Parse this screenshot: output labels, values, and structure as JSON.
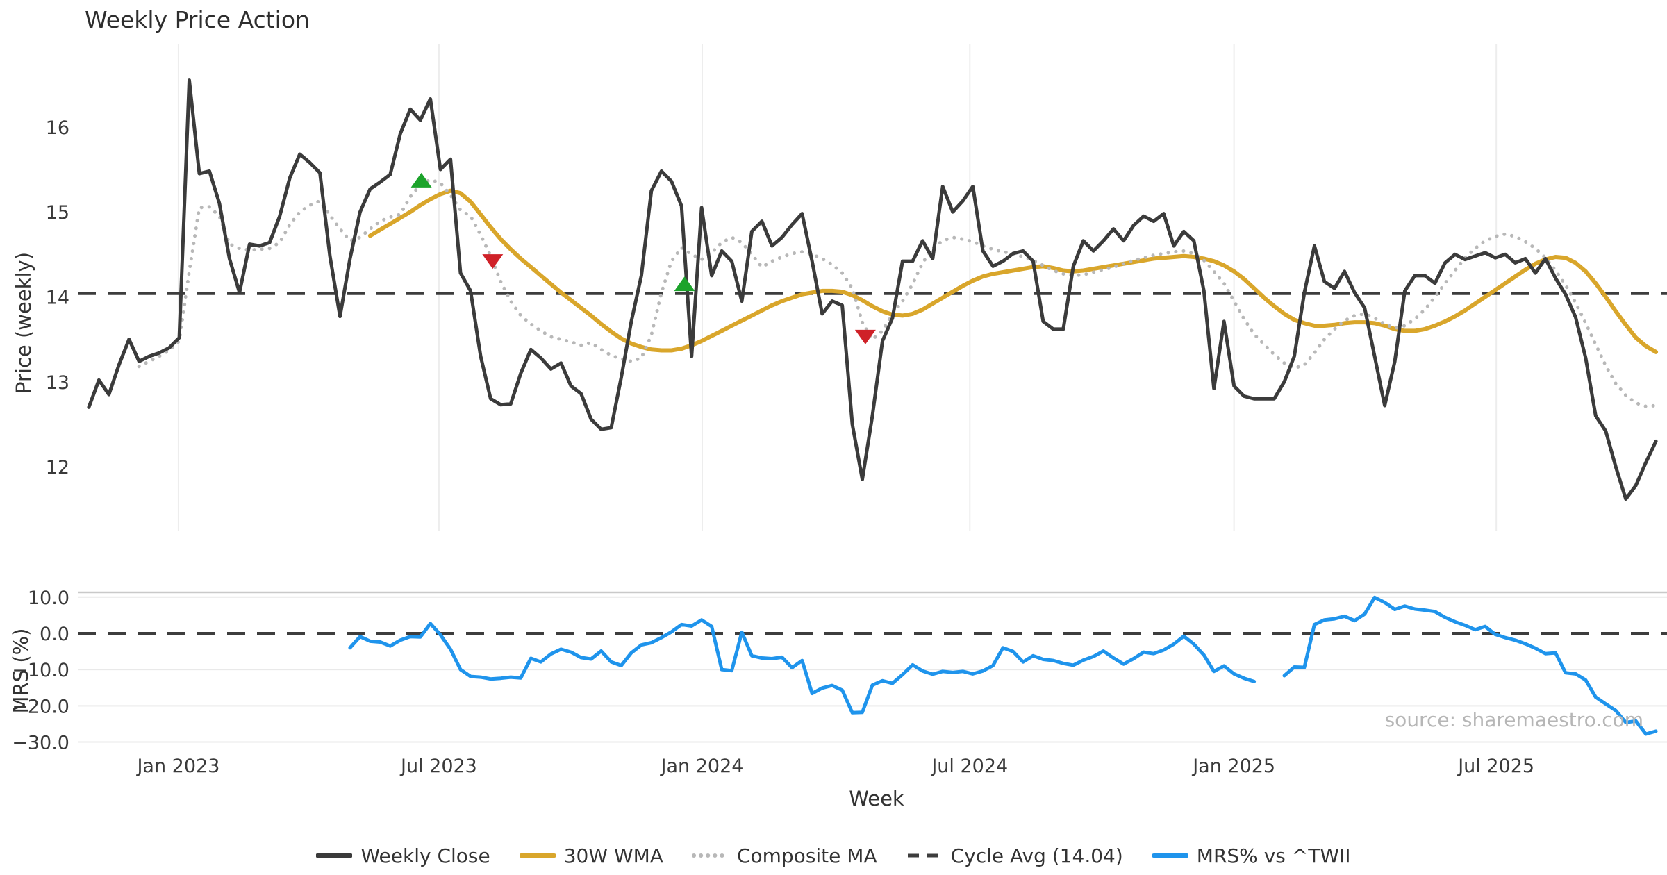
{
  "chart_data": {
    "type": "line",
    "title": "Weekly Price Action",
    "source_text": "source: sharemaestro.com",
    "x_axis": {
      "label": "Week",
      "xlim": [
        -1.1,
        157.1
      ],
      "ticks": [
        {
          "week": 8.92,
          "label": "Jan 2023"
        },
        {
          "week": 34.85,
          "label": "Jul 2023"
        },
        {
          "week": 61.06,
          "label": "Jan 2024"
        },
        {
          "week": 87.7,
          "label": "Jul 2024"
        },
        {
          "week": 114.0,
          "label": "Jan 2025"
        },
        {
          "week": 140.1,
          "label": "Jul 2025"
        }
      ]
    },
    "panels": [
      {
        "name": "price",
        "ylabel": "Price (weekly)",
        "ylim": [
          11.24,
          16.98
        ],
        "yticks": [
          {
            "v": 12,
            "label": "12"
          },
          {
            "v": 13,
            "label": "13"
          },
          {
            "v": 14,
            "label": "14"
          },
          {
            "v": 15,
            "label": "15"
          },
          {
            "v": 16,
            "label": "16"
          }
        ],
        "reference_line": {
          "label": "Cycle Avg (14.04)",
          "value": 14.04,
          "color": "#3d3d3d"
        },
        "series": [
          {
            "name": "Weekly Close",
            "color": "#3b3b3b",
            "style": "solid",
            "width": 5,
            "start_week": 0,
            "values": [
              12.7,
              13.02,
              12.85,
              13.2,
              13.5,
              13.24,
              13.3,
              13.34,
              13.4,
              13.52,
              16.55,
              15.45,
              15.48,
              15.1,
              14.45,
              14.05,
              14.62,
              14.6,
              14.64,
              14.95,
              15.4,
              15.68,
              15.58,
              15.46,
              14.48,
              13.77,
              14.45,
              15.0,
              15.27,
              15.35,
              15.44,
              15.92,
              16.21,
              16.08,
              16.33,
              15.5,
              15.62,
              14.28,
              14.07,
              13.3,
              12.8,
              12.73,
              12.74,
              13.1,
              13.38,
              13.28,
              13.15,
              13.22,
              12.95,
              12.86,
              12.56,
              12.44,
              12.46,
              13.05,
              13.71,
              14.25,
              15.25,
              15.48,
              15.36,
              15.07,
              13.3,
              15.05,
              14.25,
              14.54,
              14.42,
              13.95,
              14.77,
              14.89,
              14.6,
              14.7,
              14.85,
              14.98,
              14.42,
              13.8,
              13.95,
              13.9,
              12.5,
              11.85,
              12.6,
              13.48,
              13.75,
              14.42,
              14.42,
              14.66,
              14.45,
              15.3,
              15.0,
              15.13,
              15.3,
              14.54,
              14.36,
              14.42,
              14.51,
              14.54,
              14.42,
              13.71,
              13.62,
              13.62,
              14.36,
              14.66,
              14.54,
              14.66,
              14.8,
              14.66,
              14.84,
              14.95,
              14.89,
              14.98,
              14.6,
              14.77,
              14.66,
              14.07,
              12.92,
              13.71,
              12.95,
              12.83,
              12.8,
              12.8,
              12.8,
              13.0,
              13.3,
              14.05,
              14.6,
              14.18,
              14.1,
              14.3,
              14.05,
              13.87,
              13.3,
              12.72,
              13.24,
              14.07,
              14.25,
              14.25,
              14.16,
              14.4,
              14.5,
              14.44,
              14.48,
              14.52,
              14.46,
              14.5,
              14.4,
              14.45,
              14.28,
              14.45,
              14.22,
              14.03,
              13.76,
              13.28,
              12.6,
              12.42,
              12.0,
              11.62,
              11.78,
              12.05,
              12.3
            ]
          },
          {
            "name": "30W WMA",
            "color": "#d9a62b",
            "style": "solid",
            "width": 6,
            "start_week": 28,
            "values": [
              14.72,
              14.79,
              14.86,
              14.93,
              15.0,
              15.08,
              15.15,
              15.21,
              15.25,
              15.22,
              15.12,
              14.97,
              14.82,
              14.68,
              14.56,
              14.45,
              14.35,
              14.25,
              14.15,
              14.05,
              13.96,
              13.87,
              13.78,
              13.68,
              13.59,
              13.51,
              13.45,
              13.41,
              13.38,
              13.37,
              13.37,
              13.39,
              13.43,
              13.48,
              13.54,
              13.6,
              13.66,
              13.72,
              13.78,
              13.84,
              13.9,
              13.95,
              13.99,
              14.03,
              14.05,
              14.07,
              14.07,
              14.06,
              14.02,
              13.96,
              13.89,
              13.83,
              13.79,
              13.78,
              13.8,
              13.85,
              13.92,
              13.99,
              14.06,
              14.13,
              14.19,
              14.24,
              14.27,
              14.29,
              14.31,
              14.33,
              14.35,
              14.36,
              14.34,
              14.31,
              14.3,
              14.31,
              14.33,
              14.35,
              14.37,
              14.39,
              14.41,
              14.43,
              14.45,
              14.46,
              14.47,
              14.48,
              14.47,
              14.45,
              14.42,
              14.37,
              14.3,
              14.21,
              14.1,
              13.99,
              13.89,
              13.8,
              13.73,
              13.69,
              13.66,
              13.66,
              13.67,
              13.69,
              13.7,
              13.7,
              13.69,
              13.66,
              13.62,
              13.6,
              13.6,
              13.62,
              13.66,
              13.71,
              13.77,
              13.84,
              13.92,
              14.0,
              14.08,
              14.16,
              14.24,
              14.32,
              14.39,
              14.44,
              14.47,
              14.46,
              14.4,
              14.3,
              14.16,
              14.0,
              13.83,
              13.67,
              13.52,
              13.42,
              13.35
            ]
          },
          {
            "name": "Composite MA",
            "color": "#b8b8b8",
            "style": "dotted",
            "width": 5,
            "start_week": 5,
            "values": [
              13.18,
              13.24,
              13.3,
              13.37,
              13.48,
              14.3,
              15.05,
              15.06,
              14.95,
              14.62,
              14.57,
              14.55,
              14.56,
              14.57,
              14.64,
              14.85,
              15.0,
              15.08,
              15.13,
              14.96,
              14.8,
              14.66,
              14.7,
              14.8,
              14.89,
              14.94,
              14.97,
              15.18,
              15.32,
              15.38,
              15.34,
              15.2,
              15.02,
              14.95,
              14.73,
              14.48,
              14.18,
              13.95,
              13.78,
              13.68,
              13.6,
              13.53,
              13.5,
              13.47,
              13.43,
              13.46,
              13.38,
              13.31,
              13.27,
              13.24,
              13.28,
              13.55,
              14.05,
              14.42,
              14.58,
              14.5,
              14.44,
              14.52,
              14.64,
              14.7,
              14.64,
              14.5,
              14.35,
              14.42,
              14.47,
              14.51,
              14.53,
              14.5,
              14.45,
              14.38,
              14.28,
              14.1,
              13.7,
              13.5,
              13.6,
              13.8,
              13.95,
              14.15,
              14.4,
              14.57,
              14.66,
              14.7,
              14.68,
              14.65,
              14.6,
              14.56,
              14.53,
              14.51,
              14.47,
              14.43,
              14.37,
              14.31,
              14.27,
              14.25,
              14.26,
              14.29,
              14.32,
              14.35,
              14.39,
              14.43,
              14.46,
              14.49,
              14.51,
              14.53,
              14.54,
              14.51,
              14.43,
              14.3,
              14.16,
              13.95,
              13.74,
              13.56,
              13.44,
              13.32,
              13.22,
              13.16,
              13.2,
              13.34,
              13.5,
              13.62,
              13.72,
              13.78,
              13.8,
              13.75,
              13.68,
              13.63,
              13.66,
              13.74,
              13.85,
              14.0,
              14.16,
              14.31,
              14.46,
              14.57,
              14.66,
              14.71,
              14.74,
              14.71,
              14.65,
              14.57,
              14.46,
              14.31,
              14.14,
              13.93,
              13.69,
              13.44,
              13.19,
              12.98,
              12.84,
              12.75,
              12.71,
              12.72
            ]
          }
        ],
        "markers": {
          "buy": {
            "color": "#1ca32b",
            "shape": "triangle-up",
            "points": [
              {
                "week": 33.1,
                "value": 15.37
              },
              {
                "week": 59.3,
                "value": 14.15
              }
            ]
          },
          "sell": {
            "color": "#cf2128",
            "shape": "triangle-down",
            "points": [
              {
                "week": 40.2,
                "value": 14.42
              },
              {
                "week": 77.3,
                "value": 13.53
              }
            ]
          }
        }
      },
      {
        "name": "mrs",
        "ylabel": "MRS (%)",
        "ylim": [
          -32.2,
          11.3
        ],
        "yticks": [
          {
            "v": 10,
            "label": "10.0"
          },
          {
            "v": 0,
            "label": "0.0"
          },
          {
            "v": -10,
            "label": "−10.0"
          },
          {
            "v": -20,
            "label": "−20.0"
          },
          {
            "v": -30,
            "label": "−30.0"
          }
        ],
        "zero_line": {
          "value": 0,
          "color": "#3d3d3d"
        },
        "series": [
          {
            "name": "MRS% vs ^TWII",
            "color": "#1f94ec",
            "style": "solid",
            "width": 5,
            "start_week": 26,
            "values": [
              -4.0,
              -0.9,
              -2.2,
              -2.4,
              -3.5,
              -1.9,
              -0.9,
              -1.0,
              2.7,
              -0.4,
              -4.4,
              -10.0,
              -11.9,
              -12.1,
              -12.6,
              -12.4,
              -12.1,
              -12.3,
              -6.9,
              -7.9,
              -5.7,
              -4.4,
              -5.2,
              -6.7,
              -7.1,
              -4.9,
              -7.9,
              -8.9,
              -5.4,
              -3.2,
              -2.6,
              -1.2,
              0.4,
              2.4,
              2.0,
              3.7,
              1.9,
              -10.0,
              -10.3,
              0.3,
              -6.2,
              -6.8,
              -7.0,
              -6.6,
              -9.5,
              -7.5,
              -16.6,
              -15.1,
              -14.4,
              -15.7,
              -21.9,
              -21.8,
              -14.3,
              -13.1,
              -13.8,
              -11.4,
              -8.7,
              -10.4,
              -11.3,
              -10.5,
              -10.8,
              -10.5,
              -11.2,
              -10.4,
              -8.9,
              -4.0,
              -5.0,
              -7.9,
              -6.2,
              -7.2,
              -7.5,
              -8.3,
              -8.8,
              -7.4,
              -6.4,
              -4.9,
              -6.8,
              -8.5,
              -7.0,
              -5.2,
              -5.6,
              -4.6,
              -3.0,
              -0.8,
              -3.0,
              -6.0,
              -10.5,
              -9.0,
              -11.2,
              -12.4,
              -13.3,
              null,
              null,
              -11.7,
              -9.3,
              -9.4,
              2.4,
              3.7,
              4.0,
              4.7,
              3.5,
              5.3,
              9.9,
              8.5,
              6.6,
              7.5,
              6.7,
              6.4,
              6.0,
              4.4,
              3.2,
              2.2,
              1.0,
              1.9,
              -0.3,
              -1.2,
              -1.9,
              -2.9,
              -4.1,
              -5.6,
              -5.4,
              -10.9,
              -11.2,
              -12.9,
              -17.6,
              -19.5,
              -21.3,
              -24.6,
              -24.2,
              -27.8,
              -27.0
            ]
          }
        ]
      }
    ],
    "legend": [
      {
        "label": "Weekly Close",
        "color": "#3b3b3b",
        "style": "solid"
      },
      {
        "label": "30W WMA",
        "color": "#d9a62b",
        "style": "solid"
      },
      {
        "label": "Composite MA",
        "color": "#b8b8b8",
        "style": "dotted"
      },
      {
        "label": "Cycle Avg (14.04)",
        "color": "#3d3d3d",
        "style": "dashed"
      },
      {
        "label": "MRS% vs ^TWII",
        "color": "#1f94ec",
        "style": "solid"
      }
    ],
    "grid_color": "#ededed",
    "spine_color": "#c9c9c9"
  }
}
